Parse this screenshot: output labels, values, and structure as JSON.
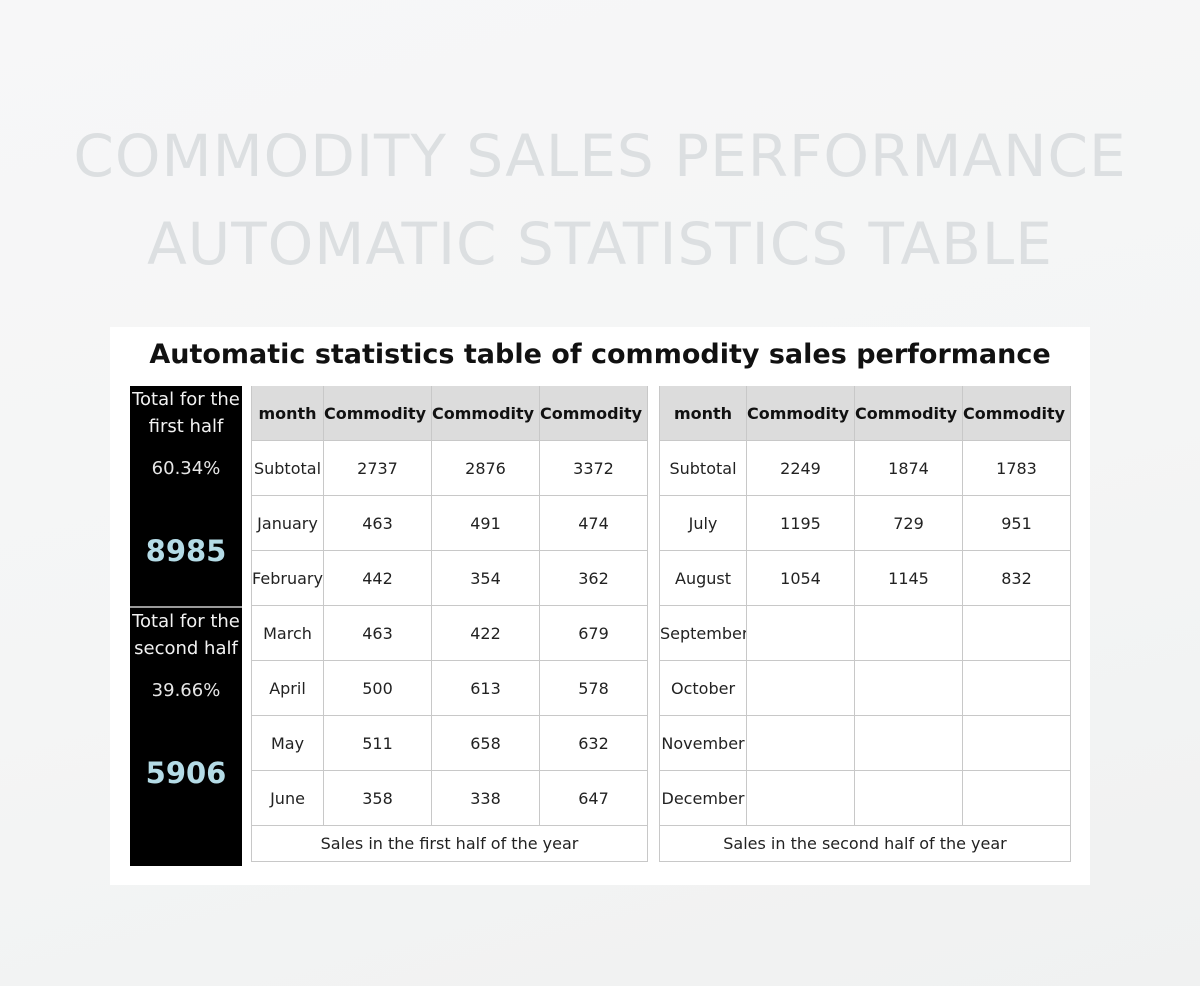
{
  "hero": {
    "line1": "COMMODITY SALES PERFORMANCE",
    "line2": "AUTOMATIC STATISTICS TABLE"
  },
  "card": {
    "title": "Automatic statistics table of commodity sales performance"
  },
  "summary": {
    "first": {
      "label_line1": "Total for the",
      "label_line2": "first half",
      "percent": "60.34%",
      "total": "8985"
    },
    "second": {
      "label_line1": "Total for the",
      "label_line2": "second half",
      "percent": "39.66%",
      "total": "5906"
    }
  },
  "left_table": {
    "headers": [
      "month",
      "Commodity A",
      "Commodity B",
      "Commodity C"
    ],
    "rows": [
      [
        "Subtotal",
        "2737",
        "2876",
        "3372"
      ],
      [
        "January",
        "463",
        "491",
        "474"
      ],
      [
        "February",
        "442",
        "354",
        "362"
      ],
      [
        "March",
        "463",
        "422",
        "679"
      ],
      [
        "April",
        "500",
        "613",
        "578"
      ],
      [
        "May",
        "511",
        "658",
        "632"
      ],
      [
        "June",
        "358",
        "338",
        "647"
      ]
    ],
    "footer": "Sales in the first half of the year"
  },
  "right_table": {
    "headers": [
      "month",
      "Commodity A",
      "Commodity B",
      "Commodity C"
    ],
    "rows": [
      [
        "Subtotal",
        "2249",
        "1874",
        "1783"
      ],
      [
        "July",
        "1195",
        "729",
        "951"
      ],
      [
        "August",
        "1054",
        "1145",
        "832"
      ],
      [
        "September",
        "",
        "",
        ""
      ],
      [
        "October",
        "",
        "",
        ""
      ],
      [
        "November",
        "",
        "",
        ""
      ],
      [
        "December",
        "",
        "",
        ""
      ]
    ],
    "footer": "Sales in the second half of the year"
  }
}
